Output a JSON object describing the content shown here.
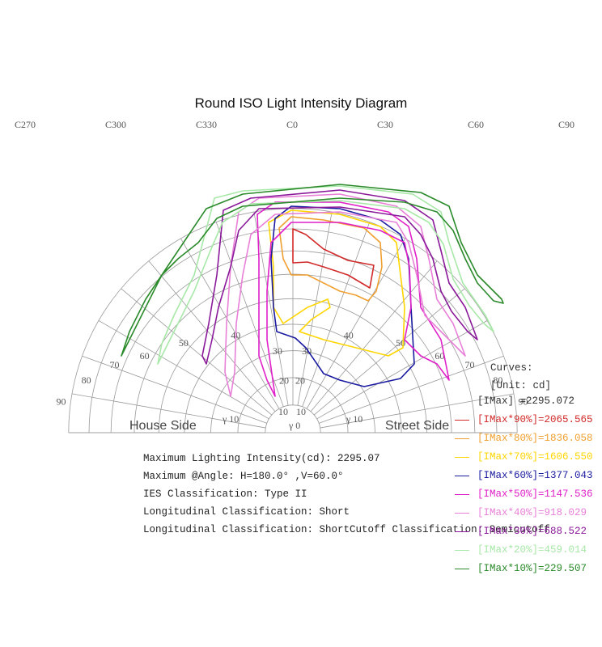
{
  "title": "Round ISO Light Intensity Diagram",
  "c_labels": [
    "C270",
    "C300",
    "C330",
    "C0",
    "C30",
    "C60",
    "C90"
  ],
  "ring_labels_left": [
    "90",
    "80",
    "70",
    "60",
    "50",
    "40",
    "30",
    "20",
    "10"
  ],
  "ring_labels_right": [
    "90",
    "80",
    "70",
    "60",
    "50",
    "40",
    "30",
    "20",
    "10"
  ],
  "center_labels": {
    "left": "γ 10",
    "center": "γ 0",
    "right": "γ 10"
  },
  "house_side": "House Side",
  "street_side": "Street Side",
  "info_lines": [
    "Maximum Lighting Intensity(cd): 2295.07",
    "Maximum @Angle: H=180.0° ,V=60.0°",
    "IES Classification: Type II",
    "Longitudinal Classification: Short",
    "Longitudinal Classification: ShortCutoff Classification: Semicutoff"
  ],
  "curves_title": "Curves:",
  "unit": "[Unit: cd]",
  "legend": [
    {
      "label": "[IMax]      =2295.072",
      "color": "#333333",
      "swatch": false
    },
    {
      "label": "[IMax*90%]=2065.565",
      "color": "#d22a2a",
      "swatch": true
    },
    {
      "label": "[IMax*80%]=1836.058",
      "color": "#f0a030",
      "swatch": true
    },
    {
      "label": "[IMax*70%]=1606.550",
      "color": "#ffd500",
      "swatch": true
    },
    {
      "label": "[IMax*60%]=1377.043",
      "color": "#1a1aa0",
      "swatch": true
    },
    {
      "label": "[IMax*50%]=1147.536",
      "color": "#e020c8",
      "swatch": true
    },
    {
      "label": "[IMax*40%]=918.029",
      "color": "#e880d8",
      "swatch": true
    },
    {
      "label": "[IMax*30%]=688.522",
      "color": "#8a1a9a",
      "swatch": true
    },
    {
      "label": "[IMax*20%]=459.014",
      "color": "#a8e8a8",
      "swatch": true
    },
    {
      "label": "[IMax*10%]=229.507",
      "color": "#2a8a2a",
      "swatch": true
    }
  ]
}
